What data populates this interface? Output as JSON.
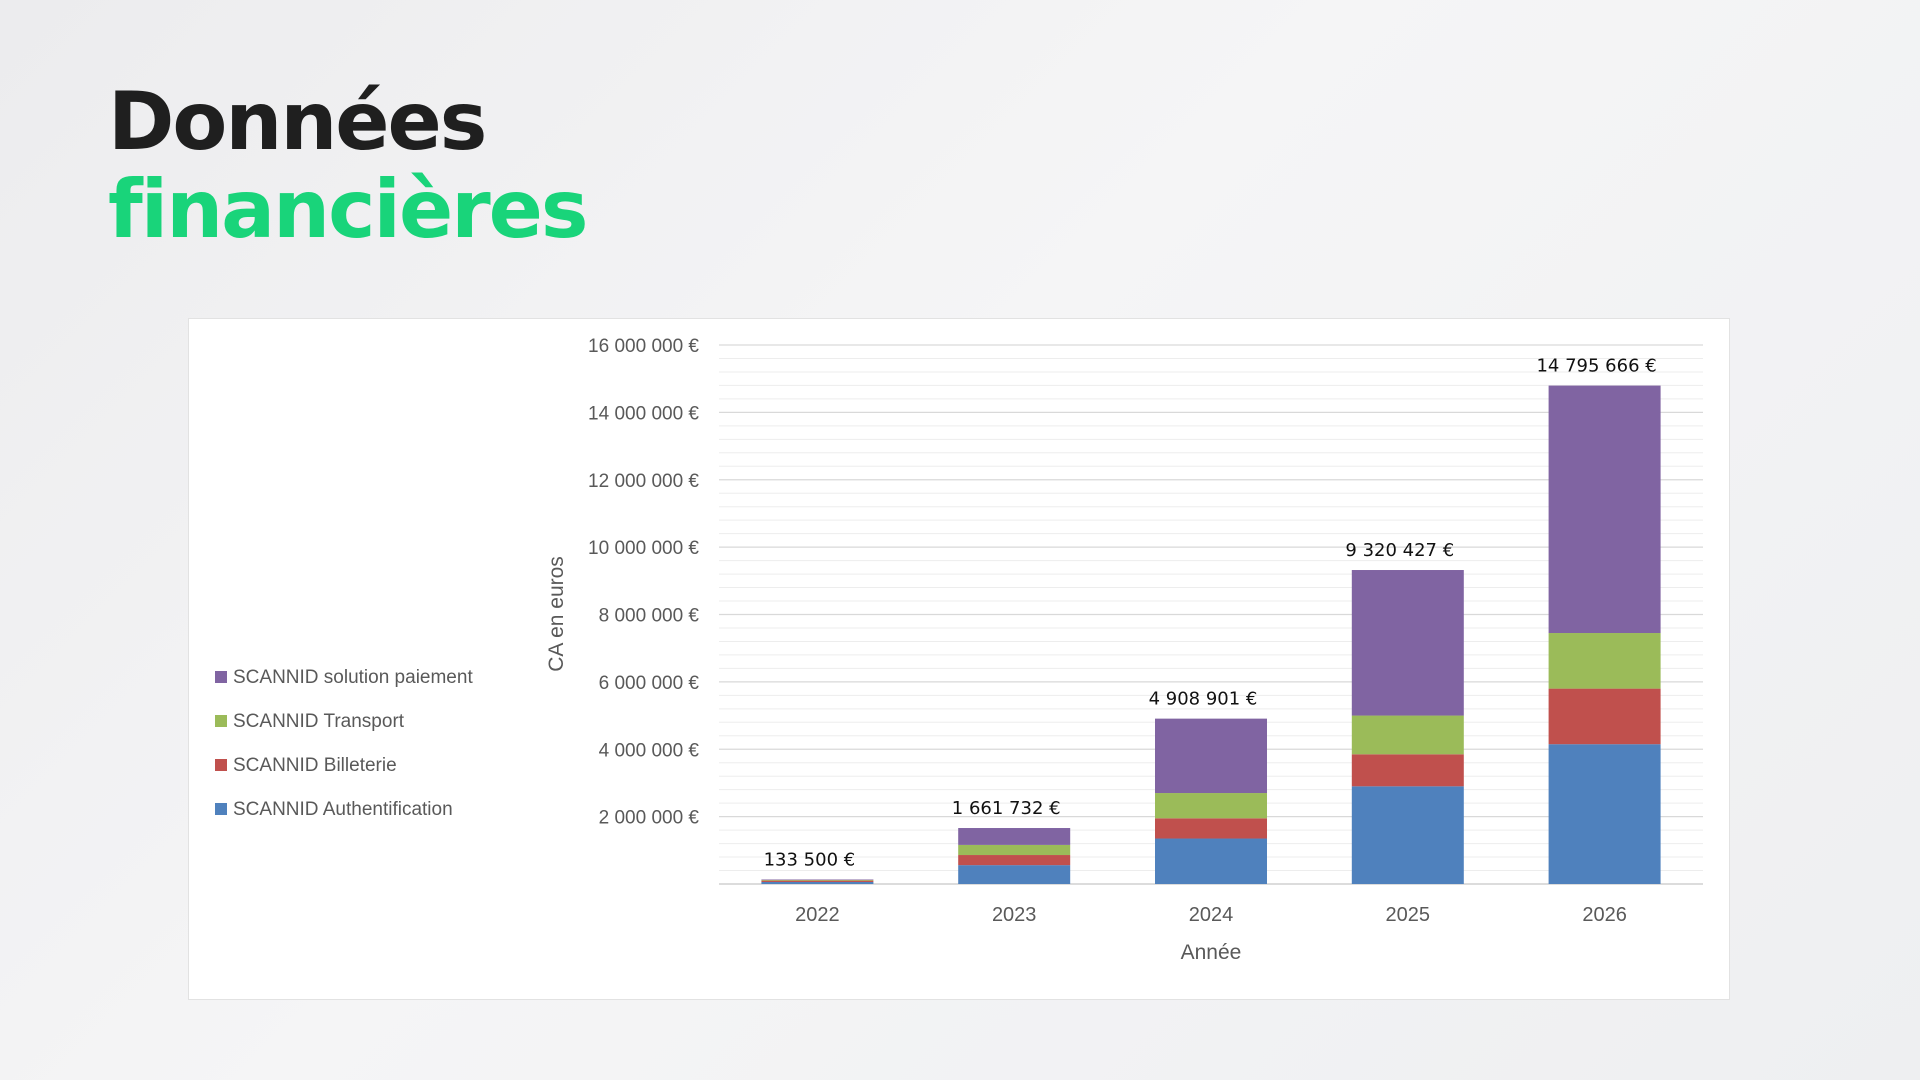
{
  "title": {
    "line1": "Données",
    "line2": "financières"
  },
  "chart_data": {
    "type": "bar",
    "stacked": true,
    "categories": [
      "2022",
      "2023",
      "2024",
      "2025",
      "2026"
    ],
    "series": [
      {
        "name": "SCANNID Authentification",
        "color": "#4f81bd",
        "values": [
          60000,
          560000,
          1350000,
          2900000,
          4150000
        ]
      },
      {
        "name": "SCANNID Billeterie",
        "color": "#c0504d",
        "values": [
          40000,
          300000,
          600000,
          950000,
          1650000
        ]
      },
      {
        "name": "SCANNID Transport",
        "color": "#9bbb59",
        "values": [
          18500,
          300000,
          750000,
          1150000,
          1650000
        ]
      },
      {
        "name": "SCANNID solution paiement",
        "color": "#8064a2",
        "values": [
          15000,
          501732,
          2208901,
          4320427,
          7345666
        ]
      }
    ],
    "totals": [
      "133 500 €",
      "1 661 732 €",
      "4 908 901 €",
      "9 320 427 €",
      "14 795 666 €"
    ],
    "total_values": [
      133500,
      1661732,
      4908901,
      9320427,
      14795666
    ],
    "yticks": [
      2000000,
      4000000,
      6000000,
      8000000,
      10000000,
      12000000,
      14000000,
      16000000
    ],
    "ytick_labels": [
      "2 000 000 €",
      "4 000 000 €",
      "6 000 000 €",
      "8 000 000 €",
      "10 000 000 €",
      "12 000 000 €",
      "14 000 000 €",
      "16 000 000 €"
    ],
    "ylim": [
      0,
      16000000
    ],
    "xlabel": "Année",
    "ylabel": "CA en euros",
    "legend_position": "left",
    "grid": true
  }
}
